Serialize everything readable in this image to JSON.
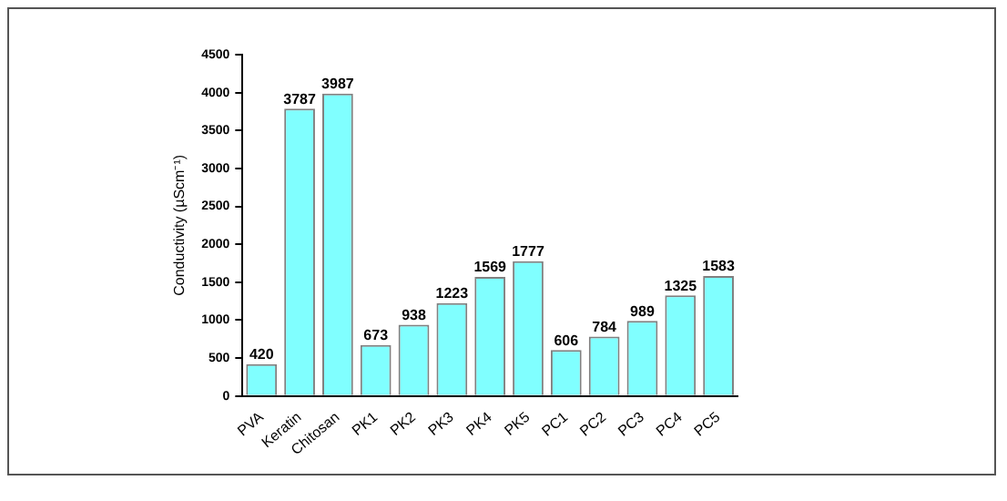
{
  "chart_data": {
    "type": "bar",
    "ylabel": "Conductivity (µScm⁻¹)",
    "categories": [
      "PVA",
      "Keratin",
      "Chitosan",
      "PK1",
      "PK2",
      "PK3",
      "PK4",
      "PK5",
      "PC1",
      "PC2",
      "PC3",
      "PC4",
      "PC5"
    ],
    "values": [
      420,
      3787,
      3987,
      673,
      938,
      1223,
      1569,
      1777,
      606,
      784,
      989,
      1325,
      1583
    ],
    "color": "#80ffff",
    "ylim": [
      0,
      4500
    ],
    "yticks": [
      0,
      500,
      1000,
      1500,
      2000,
      2500,
      3000,
      3500,
      4000,
      4500
    ],
    "grid": false,
    "legend": false,
    "data_labels": true
  }
}
